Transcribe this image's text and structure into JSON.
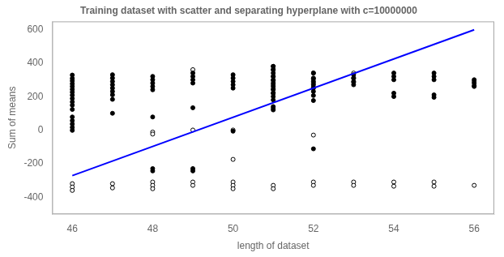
{
  "chart_data": {
    "type": "scatter",
    "title": "Training dataset with scatter and separating hyperplane with c=10000000",
    "xlabel": "length of dataset",
    "ylabel": "Sum of means",
    "xlim": [
      45.5,
      56.5
    ],
    "ylim": [
      -500,
      650
    ],
    "xticks": [
      46,
      48,
      50,
      52,
      54,
      56
    ],
    "yticks": [
      -400,
      -200,
      0,
      200,
      400,
      600
    ],
    "grid": false,
    "series": [
      {
        "type": "line",
        "color": "blue",
        "x": [
          46,
          56
        ],
        "values": [
          -270,
          600
        ]
      },
      {
        "type": "scatter",
        "marker": "circle",
        "color": "black",
        "x": [
          46,
          46,
          46,
          46,
          46,
          46,
          46,
          46,
          46,
          46,
          46,
          46,
          46,
          46,
          46,
          46,
          46,
          47,
          47,
          47,
          47,
          47,
          47,
          47,
          47,
          47,
          48,
          48,
          48,
          48,
          48,
          48,
          48,
          48,
          49,
          49,
          49,
          49,
          49,
          49,
          49,
          50,
          50,
          50,
          50,
          50,
          50,
          51,
          51,
          51,
          51,
          51,
          51,
          51,
          51,
          51,
          51,
          51,
          51,
          51,
          52,
          52,
          52,
          52,
          52,
          52,
          52,
          52,
          52,
          53,
          53,
          53,
          53,
          54,
          54,
          54,
          54,
          54,
          55,
          55,
          55,
          55,
          55,
          56,
          56,
          56
        ],
        "values": [
          330,
          310,
          295,
          278,
          262,
          245,
          228,
          210,
          190,
          170,
          150,
          125,
          80,
          58,
          38,
          18,
          0,
          332,
          312,
          292,
          272,
          252,
          232,
          212,
          185,
          102,
          322,
          302,
          282,
          262,
          242,
          80,
          -228,
          -242,
          342,
          322,
          302,
          282,
          135,
          -228,
          -242,
          332,
          312,
          292,
          272,
          252,
          -5,
          382,
          362,
          342,
          322,
          302,
          282,
          262,
          242,
          222,
          202,
          182,
          142,
          122,
          342,
          312,
          292,
          272,
          252,
          232,
          208,
          178,
          -110,
          332,
          312,
          292,
          272,
          342,
          322,
          302,
          222,
          202,
          342,
          322,
          302,
          212,
          197,
          302,
          282,
          262
        ]
      },
      {
        "type": "scatter",
        "marker": "open_circle",
        "color": "black",
        "x": [
          46,
          46,
          46,
          47,
          47,
          48,
          48,
          48,
          48,
          48,
          49,
          49,
          49,
          49,
          50,
          50,
          50,
          50,
          50,
          51,
          51,
          51,
          51,
          51,
          51,
          51,
          51,
          51,
          51,
          52,
          52,
          52,
          52,
          52,
          52,
          52,
          53,
          53,
          53,
          53,
          53,
          54,
          54,
          55,
          55,
          56,
          56,
          56
        ],
        "values": [
          -318,
          -338,
          -358,
          -318,
          -343,
          -308,
          -328,
          -348,
          -10,
          -22,
          362,
          2,
          -308,
          -328,
          2,
          -173,
          -308,
          -328,
          -348,
          382,
          362,
          322,
          297,
          272,
          247,
          222,
          132,
          -328,
          -348,
          342,
          307,
          282,
          257,
          -28,
          -308,
          -328,
          342,
          312,
          287,
          -308,
          -328,
          -308,
          -333,
          -308,
          -333,
          292,
          267,
          -328
        ]
      }
    ]
  }
}
